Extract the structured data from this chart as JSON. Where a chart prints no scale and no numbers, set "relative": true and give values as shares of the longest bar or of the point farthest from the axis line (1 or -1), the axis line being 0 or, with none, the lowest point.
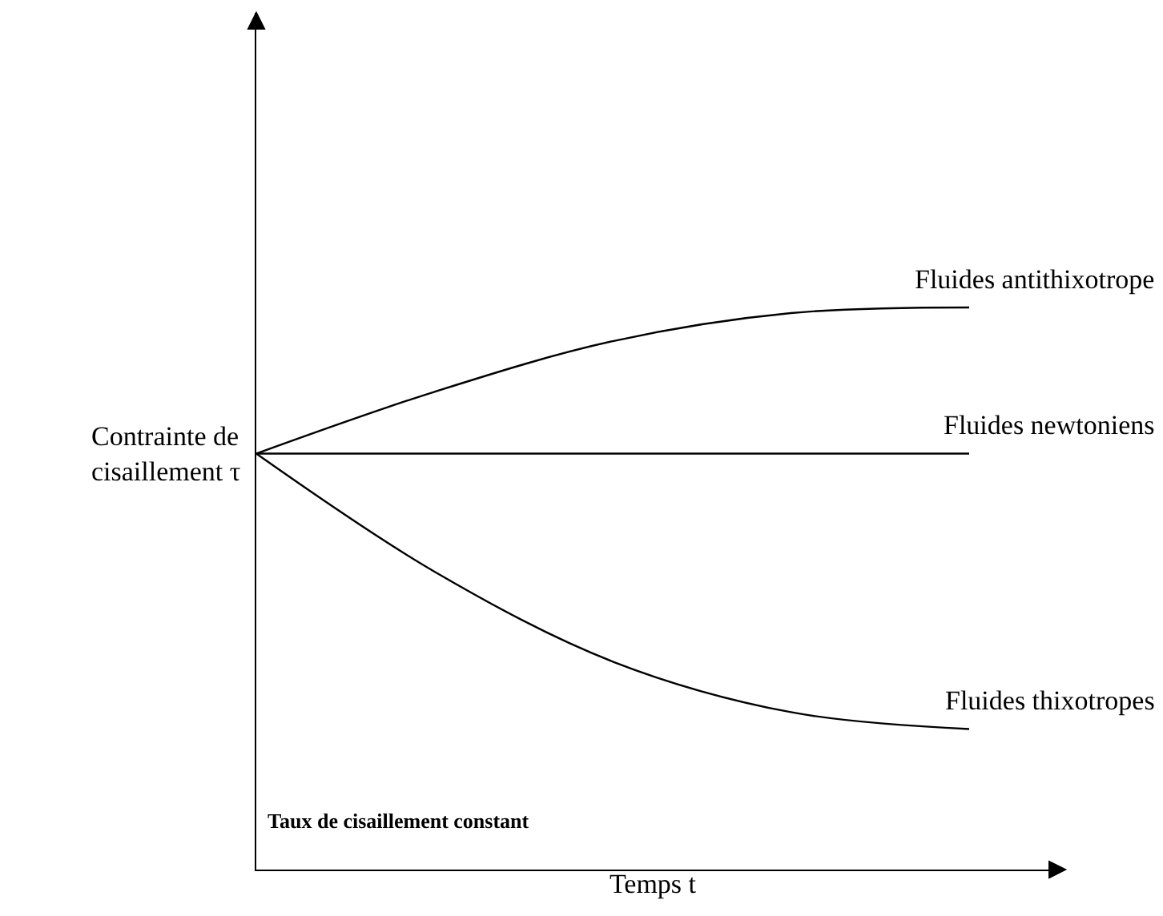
{
  "chart_data": {
    "type": "line",
    "relative": true,
    "xlabel": "Temps t",
    "ylabel": "Contrainte de cisaillement τ",
    "categories": [
      null,
      null,
      null,
      null,
      null
    ],
    "series": [
      {
        "name": "Fluides antithixotrope",
        "color": "#000000",
        "values": [
          0.74,
          0.85,
          0.94,
          0.99,
          1
        ]
      },
      {
        "name": "Fluides newtoniens",
        "color": "#000000",
        "values": [
          0.74,
          0.74,
          0.74,
          0.74,
          0.74
        ]
      },
      {
        "name": "Fluides thixotropes",
        "color": "#000000",
        "values": [
          0.74,
          0.53,
          0.37,
          0.28,
          0.25
        ]
      }
    ],
    "annotations": [
      "Taux de cisaillement constant"
    ],
    "legend": false,
    "marker": "none",
    "line_style": "solid"
  }
}
